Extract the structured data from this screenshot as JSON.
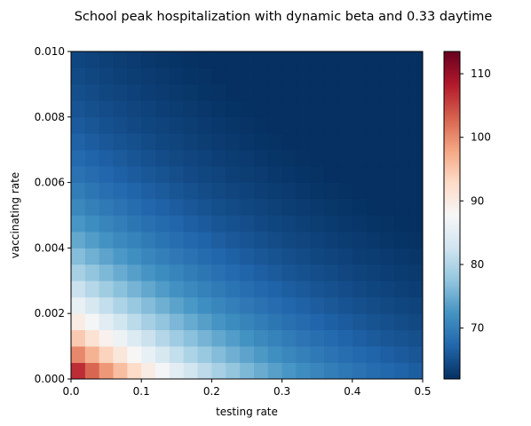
{
  "chart_data": {
    "type": "heatmap",
    "title": "School peak hospitalization with dynamic beta and 0.33 daytime",
    "xlabel": "testing rate",
    "ylabel": "vaccinating rate",
    "xlim": [
      0,
      0.5
    ],
    "ylim": [
      0,
      0.01
    ],
    "x_ticks": [
      "0.0",
      "0.1",
      "0.2",
      "0.3",
      "0.4",
      "0.5"
    ],
    "y_ticks": [
      "0.000",
      "0.002",
      "0.004",
      "0.006",
      "0.008",
      "0.010"
    ],
    "grid": false,
    "colorbar": {
      "colormap": "RdBu_r",
      "vmin": 62,
      "vmax": 113.5,
      "ticks": [
        "70",
        "80",
        "90",
        "100",
        "110"
      ]
    },
    "grid_size": {
      "nx": 25,
      "ny": 20
    },
    "cell_width": 0.02,
    "cell_height": 0.0005,
    "surface": {
      "corner_low_low": 113,
      "corner_high_high": 62,
      "description_values": [
        113,
        62
      ]
    }
  }
}
